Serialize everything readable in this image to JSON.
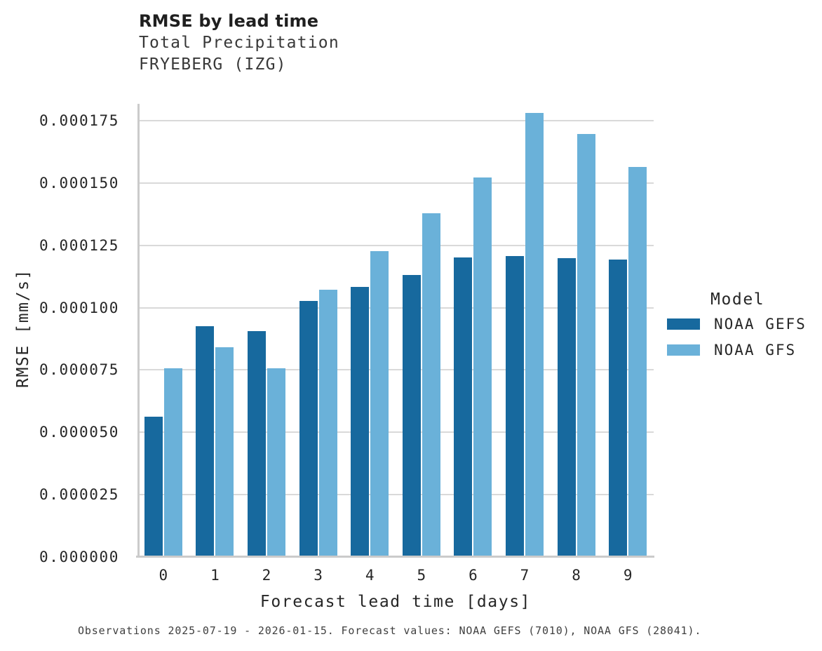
{
  "header": {
    "title": "RMSE by lead time",
    "subtitle_line1": "Total Precipitation",
    "subtitle_line2": "FRYEBERG (IZG)"
  },
  "chart_data": {
    "type": "bar",
    "title": "RMSE by lead time",
    "subtitle": [
      "Total Precipitation",
      "FRYEBERG (IZG)"
    ],
    "xlabel": "Forecast lead time [days]",
    "ylabel": "RMSE [mm/s]",
    "categories": [
      "0",
      "1",
      "2",
      "3",
      "4",
      "5",
      "6",
      "7",
      "8",
      "9"
    ],
    "series": [
      {
        "name": "NOAA GEFS",
        "color": "#17699e",
        "values": [
          5.62e-05,
          9.26e-05,
          9.06e-05,
          0.0001026,
          0.0001084,
          0.0001131,
          0.0001202,
          0.0001207,
          0.0001199,
          0.0001194
        ]
      },
      {
        "name": "NOAA GFS",
        "color": "#6ab1d9",
        "values": [
          7.58e-05,
          8.41e-05,
          7.57e-05,
          0.0001072,
          0.0001226,
          0.000138,
          0.0001521,
          0.0001781,
          0.0001696,
          0.0001563
        ]
      }
    ],
    "yticks": [
      {
        "label": "0.000000",
        "value": 0.0
      },
      {
        "label": "0.000025",
        "value": 2.5e-05
      },
      {
        "label": "0.000050",
        "value": 5e-05
      },
      {
        "label": "0.000075",
        "value": 7.5e-05
      },
      {
        "label": "0.000100",
        "value": 0.0001
      },
      {
        "label": "0.000125",
        "value": 0.000125
      },
      {
        "label": "0.000150",
        "value": 0.00015
      },
      {
        "label": "0.000175",
        "value": 0.000175
      }
    ],
    "ylim": [
      0,
      0.00018175
    ],
    "grid": true,
    "legend_title": "Model",
    "legend_position": "right"
  },
  "legend": {
    "title": "Model",
    "entries": [
      {
        "label": "NOAA GEFS",
        "color": "#17699e"
      },
      {
        "label": "NOAA GFS",
        "color": "#6ab1d9"
      }
    ]
  },
  "axes": {
    "xlabel": "Forecast lead time [days]",
    "ylabel": "RMSE [mm/s]"
  },
  "footer": {
    "text": "Observations 2025-07-19 - 2026-01-15. Forecast values: NOAA GEFS (7010), NOAA GFS (28041)."
  },
  "colors": {
    "gefs": "#17699e",
    "gfs": "#6ab1d9",
    "gridline": "#d9d9d9",
    "spine": "#cbcbcb",
    "background": "#ffffff"
  }
}
